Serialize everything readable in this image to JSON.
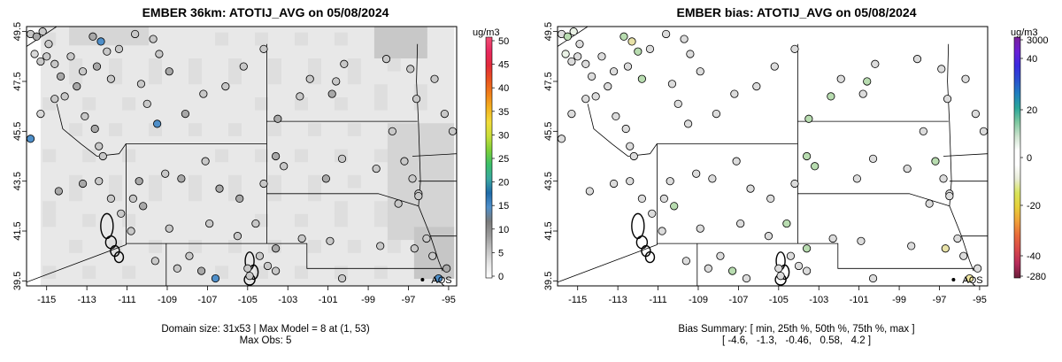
{
  "panels": [
    {
      "title": "EMBER 36km: ATOTIJ_AVG on 05/08/2024",
      "unit": "ug/m3",
      "colorbar": {
        "ticks": [
          "50",
          "45",
          "40",
          "35",
          "30",
          "25",
          "20",
          "15",
          "10",
          "5",
          "0"
        ],
        "colors": [
          "#ffffff",
          "#e6e6e6",
          "#c2c2c2",
          "#9a9a9a",
          "#7a7a7a",
          "#4f8fc9",
          "#1f6aa8",
          "#3aa8a0",
          "#3bbf6a",
          "#7bcf3a",
          "#c8de3a",
          "#f1dc3a",
          "#f3b21f",
          "#f07f1a",
          "#e8521f",
          "#e22a3a",
          "#e8285f",
          "#f04f74"
        ]
      },
      "x_ticks": [
        "-115",
        "-113",
        "-111",
        "-109",
        "-107",
        "-105",
        "-103",
        "-101",
        "-99",
        "-97",
        "-95"
      ],
      "y_ticks": [
        "49.5",
        "47.5",
        "45.5",
        "43.5",
        "41.5",
        "39.5"
      ],
      "site_label": "AQS",
      "footer": "Domain size: 31x53 | Max Model = 8 at (1, 53)\nMax Obs: 5"
    },
    {
      "title": "EMBER bias: ATOTIJ_AVG on 05/08/2024",
      "unit": "ug/m3",
      "colorbar": {
        "ticks": [
          "3000",
          "40",
          "20",
          "0",
          "-20",
          "-40",
          "-280"
        ],
        "colors": [
          "#6a1f3a",
          "#b62a5a",
          "#d8484a",
          "#e86a3a",
          "#f0a03a",
          "#e6cf3a",
          "#d8e45a",
          "#e9edd9",
          "#ffffff",
          "#ffffff",
          "#cde3cf",
          "#7ec8a0",
          "#2aa79a",
          "#1f7fbf",
          "#2a4fd0",
          "#3a2ae0",
          "#6a1fd6",
          "#7a1f9a"
        ]
      },
      "x_ticks": [
        "-115",
        "-113",
        "-111",
        "-109",
        "-107",
        "-105",
        "-103",
        "-101",
        "-99",
        "-97",
        "-95"
      ],
      "y_ticks": [
        "49.5",
        "47.5",
        "45.5",
        "43.5",
        "41.5",
        "39.5"
      ],
      "site_label": "AQS",
      "footer": "Bias Summary: [ min, 25th %, 50th %, 75th %, max ]\n[ -4.6,   -1.3,   -0.46,   0.58,   4.2 ]"
    }
  ]
}
